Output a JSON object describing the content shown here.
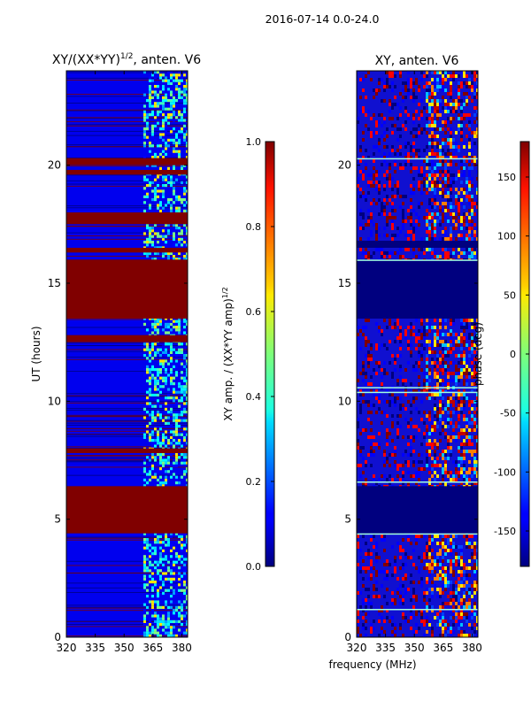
{
  "suptitle": "2016-07-14 0.0-24.0",
  "shared_xlabel": "frequency (MHz)",
  "colors": {
    "dark_red": "#800000",
    "navy": "#00007f",
    "blue": "#0000e6",
    "cyan": "#1ee6ff",
    "yellow": "#ffe600"
  },
  "chart_data": [
    {
      "type": "heatmap",
      "title_main": "XY/(XX*YY)",
      "title_sup": "1/2",
      "title_tail": ", anten. V6",
      "ylabel": "UT (hours)",
      "xlabel": "",
      "xlim": [
        320,
        383
      ],
      "ylim": [
        0,
        24
      ],
      "xticks": [
        "320",
        "335",
        "350",
        "365",
        "380"
      ],
      "xtick_values": [
        320,
        335,
        350,
        365,
        380
      ],
      "yticks": [
        "0",
        "5",
        "10",
        "15",
        "20"
      ],
      "ytick_values": [
        0,
        5,
        10,
        15,
        20
      ],
      "colorbar": {
        "label_main": "XY amp. / (XX*YY amp)",
        "label_sup": "1/2",
        "min": 0.0,
        "max": 1.0,
        "ticks": [
          "0.0",
          "0.2",
          "0.4",
          "0.6",
          "0.8",
          "1.0"
        ],
        "tick_values": [
          0.0,
          0.2,
          0.4,
          0.6,
          0.8,
          1.0
        ]
      },
      "saturated_time_bands_hours": [
        [
          4.4,
          6.4
        ],
        [
          13.5,
          16.0
        ],
        [
          16.3,
          16.5
        ],
        [
          17.5,
          18.0
        ],
        [
          20.0,
          20.3
        ],
        [
          19.6,
          19.8
        ],
        [
          12.5,
          12.8
        ],
        [
          7.8,
          8.0
        ]
      ],
      "active_freq_range_mhz": [
        360,
        383
      ]
    },
    {
      "type": "heatmap",
      "title_main": "XY, anten. V6",
      "ylabel": "",
      "xlabel": "frequency (MHz)",
      "xlim": [
        320,
        383
      ],
      "ylim": [
        0,
        24
      ],
      "xticks": [
        "320",
        "335",
        "350",
        "365",
        "380"
      ],
      "xtick_values": [
        320,
        335,
        350,
        365,
        380
      ],
      "yticks": [
        "0",
        "5",
        "10",
        "15",
        "20"
      ],
      "ytick_values": [
        0,
        5,
        10,
        15,
        20
      ],
      "colorbar": {
        "label_main": "phase (deg)",
        "min": -180,
        "max": 180,
        "ticks": [
          "-150",
          "-100",
          "-50",
          "0",
          "50",
          "100",
          "150"
        ],
        "tick_values": [
          -150,
          -100,
          -50,
          0,
          50,
          100,
          150
        ]
      },
      "flagged_time_bands_hours": [
        [
          4.4,
          6.4
        ],
        [
          13.5,
          16.0
        ],
        [
          16.5,
          16.8
        ]
      ],
      "active_freq_range_mhz": [
        355,
        383
      ]
    }
  ]
}
